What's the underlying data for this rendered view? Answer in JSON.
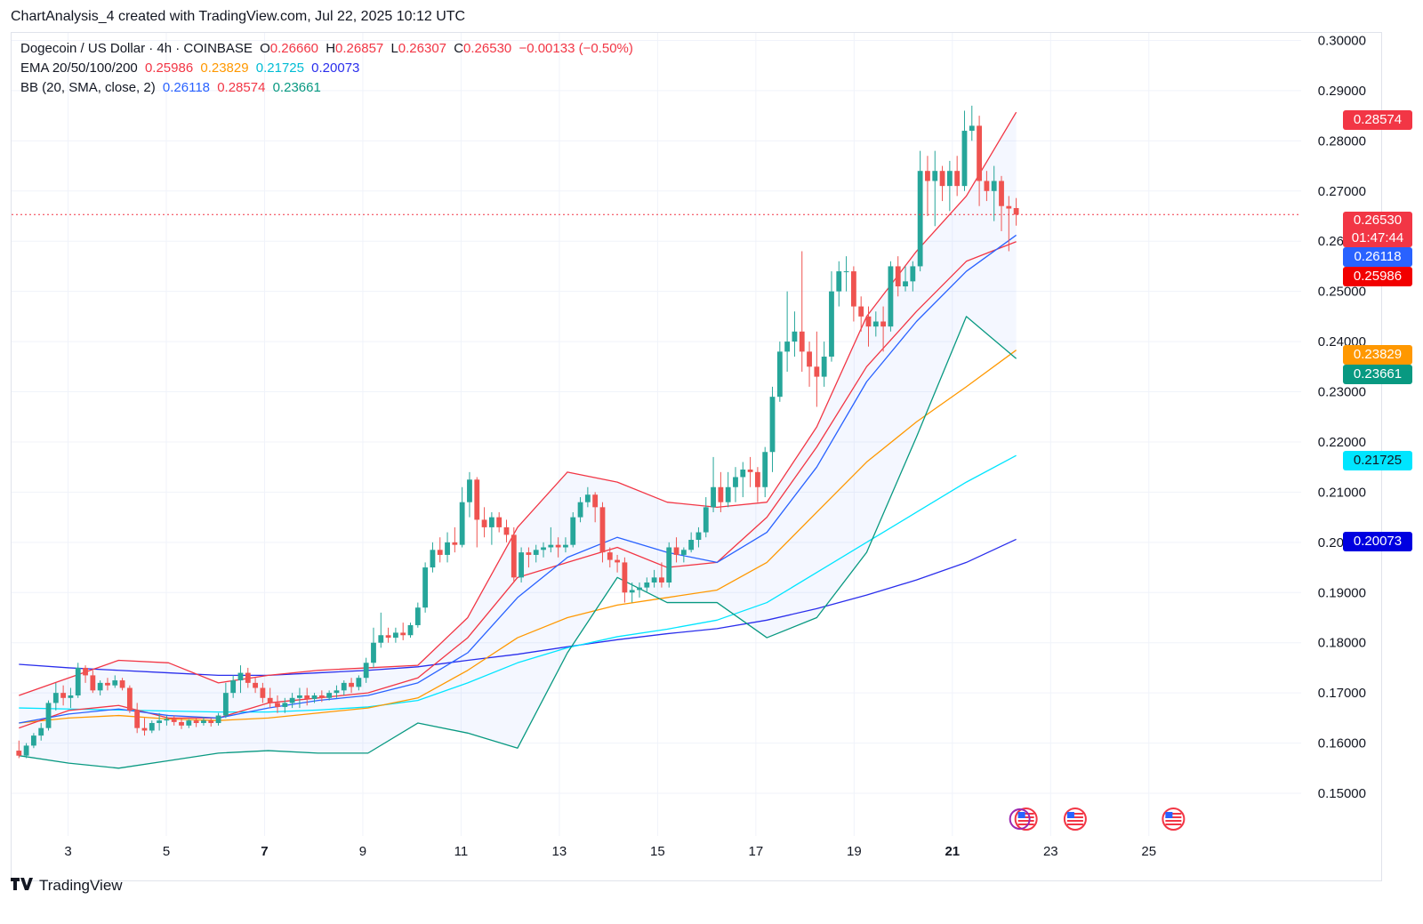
{
  "header": "ChartAnalysis_4 created with TradingView.com, Jul 22, 2025 10:12 UTC",
  "legend": {
    "line1": {
      "symbol": "Dogecoin / US Dollar · 4h · COINBASE",
      "o_label": "O",
      "o": "0.26660",
      "h_label": "H",
      "h": "0.26857",
      "l_label": "L",
      "l": "0.26307",
      "c_label": "C",
      "c": "0.26530",
      "change": "−0.00133 (−0.50%)"
    },
    "line2": {
      "label": "EMA 20/50/100/200",
      "v1": "0.25986",
      "v2": "0.23829",
      "v3": "0.21725",
      "v4": "0.20073"
    },
    "line3": {
      "label": "BB (20, SMA, close, 2)",
      "v1": "0.26118",
      "v2": "0.28574",
      "v3": "0.23661"
    }
  },
  "price_labels": {
    "bb_upper": "0.28574",
    "last_price": "0.26530",
    "countdown": "01:47:44",
    "bb_basis": "0.26118",
    "ema20": "0.25986",
    "ema50": "0.23829",
    "bb_lower": "0.23661",
    "ema100": "0.21725",
    "ema200": "0.20073"
  },
  "footer": {
    "brand": "TradingView"
  },
  "colors": {
    "up": "#26a69a",
    "down": "#ef5350",
    "ema20": "#f23645",
    "ema50": "#ff9800",
    "ema100": "#00e5ff",
    "ema200": "#2a2eec",
    "bb_basis": "#2962ff",
    "bb_upper": "#f23645",
    "bb_lower": "#089981"
  },
  "chart_data": {
    "type": "candlestick",
    "y_ticks": [
      "0.15000",
      "0.16000",
      "0.17000",
      "0.18000",
      "0.19000",
      "0.20000",
      "0.21000",
      "0.22000",
      "0.23000",
      "0.24000",
      "0.25000",
      "0.26000",
      "0.27000",
      "0.28000",
      "0.29000",
      "0.30000"
    ],
    "ylim": [
      0.1415,
      0.3015
    ],
    "x_ticks": [
      {
        "day": 3,
        "label": "3",
        "bold": false
      },
      {
        "day": 5,
        "label": "5",
        "bold": false
      },
      {
        "day": 7,
        "label": "7",
        "bold": true
      },
      {
        "day": 9,
        "label": "9",
        "bold": false
      },
      {
        "day": 11,
        "label": "11",
        "bold": false
      },
      {
        "day": 13,
        "label": "13",
        "bold": false
      },
      {
        "day": 15,
        "label": "15",
        "bold": false
      },
      {
        "day": 17,
        "label": "17",
        "bold": false
      },
      {
        "day": 19,
        "label": "19",
        "bold": false
      },
      {
        "day": 21,
        "label": "21",
        "bold": true
      },
      {
        "day": 23,
        "label": "23",
        "bold": false
      },
      {
        "day": 25,
        "label": "25",
        "bold": false
      }
    ],
    "xlim_days": [
      1.85,
      28.1
    ],
    "candles": [
      [
        0.1585,
        0.1605,
        0.157,
        0.1575
      ],
      [
        0.1575,
        0.16,
        0.157,
        0.1595
      ],
      [
        0.1595,
        0.162,
        0.159,
        0.1615
      ],
      [
        0.1615,
        0.164,
        0.1605,
        0.163
      ],
      [
        0.163,
        0.1685,
        0.1625,
        0.168
      ],
      [
        0.168,
        0.172,
        0.1665,
        0.17
      ],
      [
        0.17,
        0.1715,
        0.1675,
        0.169
      ],
      [
        0.169,
        0.171,
        0.167,
        0.1695
      ],
      [
        0.1695,
        0.176,
        0.169,
        0.175
      ],
      [
        0.175,
        0.1755,
        0.172,
        0.1735
      ],
      [
        0.1735,
        0.1745,
        0.17,
        0.1705
      ],
      [
        0.1705,
        0.1725,
        0.1695,
        0.172
      ],
      [
        0.172,
        0.173,
        0.1705,
        0.1715
      ],
      [
        0.1715,
        0.1735,
        0.171,
        0.1725
      ],
      [
        0.1725,
        0.173,
        0.1705,
        0.171
      ],
      [
        0.171,
        0.1715,
        0.166,
        0.1665
      ],
      [
        0.1665,
        0.168,
        0.162,
        0.163
      ],
      [
        0.163,
        0.165,
        0.1615,
        0.1625
      ],
      [
        0.1625,
        0.1645,
        0.162,
        0.164
      ],
      [
        0.164,
        0.166,
        0.1625,
        0.1645
      ],
      [
        0.1645,
        0.1655,
        0.1635,
        0.1648
      ],
      [
        0.1648,
        0.1655,
        0.1635,
        0.1642
      ],
      [
        0.1642,
        0.165,
        0.1628,
        0.1635
      ],
      [
        0.1635,
        0.1648,
        0.163,
        0.1645
      ],
      [
        0.1645,
        0.165,
        0.1632,
        0.164
      ],
      [
        0.164,
        0.1652,
        0.1635,
        0.1645
      ],
      [
        0.1645,
        0.165,
        0.1633,
        0.164
      ],
      [
        0.164,
        0.166,
        0.1635,
        0.1655
      ],
      [
        0.1655,
        0.172,
        0.165,
        0.17
      ],
      [
        0.17,
        0.1735,
        0.169,
        0.1725
      ],
      [
        0.1725,
        0.1755,
        0.17,
        0.174
      ],
      [
        0.174,
        0.175,
        0.171,
        0.172
      ],
      [
        0.172,
        0.173,
        0.17,
        0.171
      ],
      [
        0.171,
        0.172,
        0.168,
        0.169
      ],
      [
        0.169,
        0.171,
        0.167,
        0.168
      ],
      [
        0.168,
        0.1695,
        0.166,
        0.1672
      ],
      [
        0.1672,
        0.169,
        0.166,
        0.168
      ],
      [
        0.168,
        0.17,
        0.167,
        0.169
      ],
      [
        0.169,
        0.171,
        0.167,
        0.1695
      ],
      [
        0.1695,
        0.171,
        0.1675,
        0.1688
      ],
      [
        0.1688,
        0.17,
        0.168,
        0.1695
      ],
      [
        0.1695,
        0.1705,
        0.1682,
        0.169
      ],
      [
        0.169,
        0.1705,
        0.1685,
        0.17
      ],
      [
        0.17,
        0.1715,
        0.169,
        0.1705
      ],
      [
        0.1705,
        0.1725,
        0.1695,
        0.172
      ],
      [
        0.172,
        0.173,
        0.17,
        0.1712
      ],
      [
        0.1712,
        0.1735,
        0.1705,
        0.173
      ],
      [
        0.173,
        0.177,
        0.172,
        0.176
      ],
      [
        0.176,
        0.183,
        0.175,
        0.18
      ],
      [
        0.18,
        0.186,
        0.179,
        0.1815
      ],
      [
        0.1815,
        0.183,
        0.18,
        0.181
      ],
      [
        0.181,
        0.183,
        0.18,
        0.182
      ],
      [
        0.182,
        0.184,
        0.1805,
        0.1815
      ],
      [
        0.1815,
        0.184,
        0.181,
        0.1835
      ],
      [
        0.1835,
        0.188,
        0.183,
        0.187
      ],
      [
        0.187,
        0.196,
        0.186,
        0.195
      ],
      [
        0.195,
        0.2,
        0.194,
        0.1985
      ],
      [
        0.1985,
        0.201,
        0.196,
        0.1975
      ],
      [
        0.1975,
        0.202,
        0.196,
        0.2
      ],
      [
        0.2,
        0.203,
        0.198,
        0.1995
      ],
      [
        0.1995,
        0.211,
        0.199,
        0.208
      ],
      [
        0.208,
        0.214,
        0.205,
        0.2125
      ],
      [
        0.2125,
        0.213,
        0.199,
        0.2045
      ],
      [
        0.2045,
        0.207,
        0.201,
        0.203
      ],
      [
        0.203,
        0.206,
        0.1995,
        0.205
      ],
      [
        0.205,
        0.206,
        0.202,
        0.203
      ],
      [
        0.203,
        0.2045,
        0.2,
        0.2015
      ],
      [
        0.2015,
        0.203,
        0.192,
        0.193
      ],
      [
        0.193,
        0.199,
        0.192,
        0.198
      ],
      [
        0.198,
        0.199,
        0.195,
        0.1975
      ],
      [
        0.1975,
        0.1995,
        0.196,
        0.1985
      ],
      [
        0.1985,
        0.2,
        0.197,
        0.199
      ],
      [
        0.199,
        0.203,
        0.198,
        0.1995
      ],
      [
        0.1995,
        0.201,
        0.197,
        0.199
      ],
      [
        0.199,
        0.201,
        0.198,
        0.1995
      ],
      [
        0.1995,
        0.206,
        0.199,
        0.205
      ],
      [
        0.205,
        0.209,
        0.204,
        0.208
      ],
      [
        0.208,
        0.211,
        0.207,
        0.2095
      ],
      [
        0.2095,
        0.21,
        0.204,
        0.207
      ],
      [
        0.207,
        0.208,
        0.196,
        0.198
      ],
      [
        0.198,
        0.199,
        0.195,
        0.1965
      ],
      [
        0.1965,
        0.1975,
        0.194,
        0.196
      ],
      [
        0.196,
        0.197,
        0.188,
        0.19
      ],
      [
        0.19,
        0.192,
        0.188,
        0.1905
      ],
      [
        0.1905,
        0.192,
        0.189,
        0.191
      ],
      [
        0.191,
        0.193,
        0.19,
        0.192
      ],
      [
        0.192,
        0.1945,
        0.191,
        0.193
      ],
      [
        0.193,
        0.196,
        0.191,
        0.192
      ],
      [
        0.192,
        0.2,
        0.191,
        0.199
      ],
      [
        0.199,
        0.201,
        0.196,
        0.1975
      ],
      [
        0.1975,
        0.199,
        0.196,
        0.1985
      ],
      [
        0.1985,
        0.202,
        0.198,
        0.2005
      ],
      [
        0.2005,
        0.203,
        0.199,
        0.202
      ],
      [
        0.202,
        0.209,
        0.201,
        0.207
      ],
      [
        0.207,
        0.217,
        0.206,
        0.211
      ],
      [
        0.211,
        0.214,
        0.206,
        0.208
      ],
      [
        0.208,
        0.214,
        0.207,
        0.211
      ],
      [
        0.211,
        0.215,
        0.208,
        0.213
      ],
      [
        0.213,
        0.216,
        0.209,
        0.2145
      ],
      [
        0.2145,
        0.217,
        0.211,
        0.214
      ],
      [
        0.214,
        0.215,
        0.208,
        0.211
      ],
      [
        0.211,
        0.219,
        0.209,
        0.218
      ],
      [
        0.218,
        0.231,
        0.214,
        0.229
      ],
      [
        0.229,
        0.24,
        0.228,
        0.238
      ],
      [
        0.238,
        0.25,
        0.234,
        0.24
      ],
      [
        0.24,
        0.246,
        0.237,
        0.242
      ],
      [
        0.242,
        0.258,
        0.234,
        0.238
      ],
      [
        0.238,
        0.24,
        0.231,
        0.235
      ],
      [
        0.235,
        0.242,
        0.227,
        0.233
      ],
      [
        0.233,
        0.24,
        0.231,
        0.237
      ],
      [
        0.237,
        0.254,
        0.236,
        0.25
      ],
      [
        0.25,
        0.256,
        0.247,
        0.254
      ],
      [
        0.254,
        0.257,
        0.25,
        0.254
      ],
      [
        0.254,
        0.255,
        0.244,
        0.247
      ],
      [
        0.247,
        0.249,
        0.242,
        0.245
      ],
      [
        0.245,
        0.247,
        0.239,
        0.243
      ],
      [
        0.243,
        0.246,
        0.241,
        0.244
      ],
      [
        0.244,
        0.247,
        0.238,
        0.243
      ],
      [
        0.243,
        0.256,
        0.242,
        0.255
      ],
      [
        0.255,
        0.257,
        0.249,
        0.251
      ],
      [
        0.251,
        0.255,
        0.25,
        0.252
      ],
      [
        0.252,
        0.256,
        0.25,
        0.255
      ],
      [
        0.255,
        0.278,
        0.254,
        0.274
      ],
      [
        0.274,
        0.277,
        0.265,
        0.272
      ],
      [
        0.272,
        0.278,
        0.263,
        0.274
      ],
      [
        0.274,
        0.275,
        0.268,
        0.271
      ],
      [
        0.271,
        0.276,
        0.266,
        0.274
      ],
      [
        0.274,
        0.277,
        0.269,
        0.271
      ],
      [
        0.271,
        0.286,
        0.27,
        0.282
      ],
      [
        0.282,
        0.287,
        0.28,
        0.283
      ],
      [
        0.283,
        0.285,
        0.267,
        0.272
      ],
      [
        0.272,
        0.274,
        0.268,
        0.27
      ],
      [
        0.27,
        0.275,
        0.264,
        0.272
      ],
      [
        0.272,
        0.273,
        0.262,
        0.267
      ],
      [
        0.267,
        0.269,
        0.258,
        0.2665
      ],
      [
        0.2666,
        0.2686,
        0.2631,
        0.2653
      ]
    ],
    "series": [
      {
        "key": "ema200",
        "values": [
          0.1757,
          0.175,
          0.1745,
          0.174,
          0.1735,
          0.1735,
          0.174,
          0.1745,
          0.1752,
          0.1765,
          0.1777,
          0.1792,
          0.1806,
          0.1818,
          0.1828,
          0.1845,
          0.1868,
          0.1895,
          0.1925,
          0.196,
          0.2006
        ]
      },
      {
        "key": "ema100",
        "values": [
          0.167,
          0.1668,
          0.1666,
          0.1664,
          0.1662,
          0.1662,
          0.1666,
          0.1672,
          0.1685,
          0.172,
          0.176,
          0.179,
          0.1812,
          0.1827,
          0.1845,
          0.188,
          0.194,
          0.2,
          0.206,
          0.212,
          0.2173
        ]
      },
      {
        "key": "ema50",
        "values": [
          0.164,
          0.165,
          0.1655,
          0.1648,
          0.1645,
          0.165,
          0.166,
          0.167,
          0.169,
          0.1745,
          0.181,
          0.185,
          0.1875,
          0.189,
          0.1905,
          0.196,
          0.206,
          0.216,
          0.224,
          0.231,
          0.2383
        ]
      },
      {
        "key": "ema20",
        "values": [
          0.163,
          0.1665,
          0.1675,
          0.165,
          0.165,
          0.168,
          0.169,
          0.17,
          0.173,
          0.181,
          0.193,
          0.196,
          0.199,
          0.195,
          0.196,
          0.205,
          0.219,
          0.235,
          0.246,
          0.256,
          0.2599
        ]
      },
      {
        "key": "bb_basis",
        "values": [
          0.164,
          0.1658,
          0.1668,
          0.1655,
          0.165,
          0.167,
          0.1685,
          0.1695,
          0.172,
          0.178,
          0.189,
          0.197,
          0.201,
          0.198,
          0.196,
          0.202,
          0.215,
          0.232,
          0.244,
          0.254,
          0.2612
        ]
      },
      {
        "key": "bb_upper",
        "values": [
          0.1695,
          0.173,
          0.1765,
          0.176,
          0.172,
          0.1735,
          0.1745,
          0.175,
          0.1755,
          0.185,
          0.203,
          0.214,
          0.212,
          0.208,
          0.207,
          0.208,
          0.223,
          0.245,
          0.258,
          0.269,
          0.2857
        ]
      },
      {
        "key": "bb_lower",
        "values": [
          0.1575,
          0.156,
          0.155,
          0.1565,
          0.158,
          0.1585,
          0.158,
          0.158,
          0.164,
          0.162,
          0.159,
          0.178,
          0.193,
          0.188,
          0.188,
          0.181,
          0.185,
          0.198,
          0.221,
          0.245,
          0.2366
        ]
      }
    ]
  }
}
